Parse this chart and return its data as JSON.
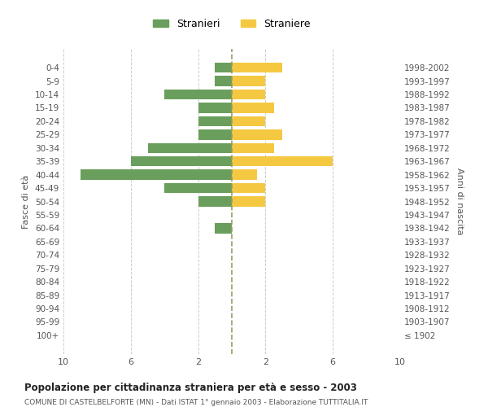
{
  "age_groups": [
    "100+",
    "95-99",
    "90-94",
    "85-89",
    "80-84",
    "75-79",
    "70-74",
    "65-69",
    "60-64",
    "55-59",
    "50-54",
    "45-49",
    "40-44",
    "35-39",
    "30-34",
    "25-29",
    "20-24",
    "15-19",
    "10-14",
    "5-9",
    "0-4"
  ],
  "birth_years": [
    "≤ 1902",
    "1903-1907",
    "1908-1912",
    "1913-1917",
    "1918-1922",
    "1923-1927",
    "1928-1932",
    "1933-1937",
    "1938-1942",
    "1943-1947",
    "1948-1952",
    "1953-1957",
    "1958-1962",
    "1963-1967",
    "1968-1972",
    "1973-1977",
    "1978-1982",
    "1983-1987",
    "1988-1992",
    "1993-1997",
    "1998-2002"
  ],
  "males": [
    0,
    0,
    0,
    0,
    0,
    0,
    0,
    0,
    1,
    0,
    2,
    4,
    9,
    6,
    5,
    2,
    2,
    2,
    4,
    1,
    1
  ],
  "females": [
    0,
    0,
    0,
    0,
    0,
    0,
    0,
    0,
    0,
    0,
    2,
    2,
    1.5,
    6,
    2.5,
    3,
    2,
    2.5,
    2,
    2,
    3
  ],
  "male_color": "#6a9e5c",
  "female_color": "#f5c842",
  "title": "Popolazione per cittadinanza straniera per età e sesso - 2003",
  "subtitle": "COMUNE DI CASTELBELFORTE (MN) - Dati ISTAT 1° gennaio 2003 - Elaborazione TUTTITALIA.IT",
  "ylabel_left": "Fasce di età",
  "ylabel_right": "Anni di nascita",
  "legend_male": "Stranieri",
  "legend_female": "Straniere",
  "xlim": 10,
  "background_color": "#ffffff",
  "grid_color": "#cccccc",
  "bar_height": 0.75
}
